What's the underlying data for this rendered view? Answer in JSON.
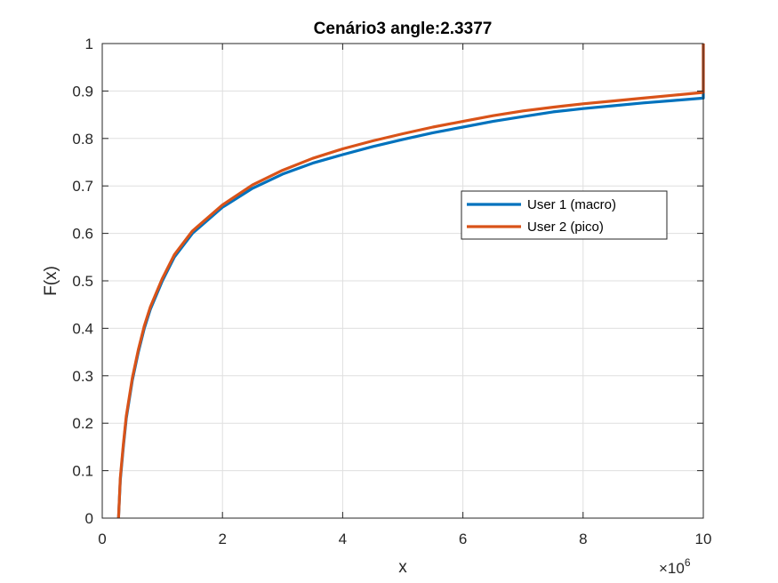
{
  "chart_data": {
    "type": "line",
    "title": "Cenário3 angle:2.3377",
    "xlabel": "x",
    "ylabel": "F(x)",
    "xlim": [
      0,
      10
    ],
    "ylim": [
      0,
      1
    ],
    "x_multiplier": "×10",
    "x_multiplier_exponent": "6",
    "xticks": [
      0,
      2,
      4,
      6,
      8,
      10
    ],
    "xtick_labels": [
      "0",
      "2",
      "4",
      "6",
      "8",
      "10"
    ],
    "yticks": [
      0,
      0.1,
      0.2,
      0.3,
      0.4,
      0.5,
      0.6,
      0.7,
      0.8,
      0.9,
      1
    ],
    "ytick_labels": [
      "0",
      "0.1",
      "0.2",
      "0.3",
      "0.4",
      "0.5",
      "0.6",
      "0.7",
      "0.8",
      "0.9",
      "1"
    ],
    "grid": true,
    "legend_position": "center-right",
    "series": [
      {
        "name": "User 1 (macro)",
        "color": "#0072BD",
        "x": [
          0.27,
          0.3,
          0.35,
          0.4,
          0.5,
          0.6,
          0.7,
          0.8,
          1.0,
          1.2,
          1.5,
          2.0,
          2.5,
          3.0,
          3.5,
          4.0,
          4.5,
          5.0,
          5.5,
          6.0,
          6.5,
          7.0,
          7.5,
          8.0,
          8.5,
          9.0,
          9.5,
          10.0,
          10.0
        ],
        "values": [
          0.0,
          0.08,
          0.15,
          0.21,
          0.29,
          0.35,
          0.4,
          0.44,
          0.5,
          0.55,
          0.6,
          0.655,
          0.695,
          0.725,
          0.748,
          0.766,
          0.783,
          0.798,
          0.812,
          0.824,
          0.836,
          0.846,
          0.856,
          0.863,
          0.869,
          0.875,
          0.88,
          0.885,
          1.0
        ]
      },
      {
        "name": "User 2 (pico)",
        "color": "#D95319",
        "x": [
          0.27,
          0.3,
          0.35,
          0.4,
          0.5,
          0.6,
          0.7,
          0.8,
          1.0,
          1.2,
          1.5,
          2.0,
          2.5,
          3.0,
          3.5,
          4.0,
          4.5,
          5.0,
          5.5,
          6.0,
          6.5,
          7.0,
          7.5,
          8.0,
          8.5,
          9.0,
          9.5,
          10.0,
          10.0
        ],
        "values": [
          0.0,
          0.085,
          0.155,
          0.215,
          0.295,
          0.355,
          0.405,
          0.445,
          0.505,
          0.555,
          0.605,
          0.66,
          0.702,
          0.733,
          0.758,
          0.778,
          0.795,
          0.81,
          0.824,
          0.836,
          0.848,
          0.858,
          0.866,
          0.873,
          0.879,
          0.885,
          0.891,
          0.897,
          1.0
        ]
      }
    ]
  }
}
